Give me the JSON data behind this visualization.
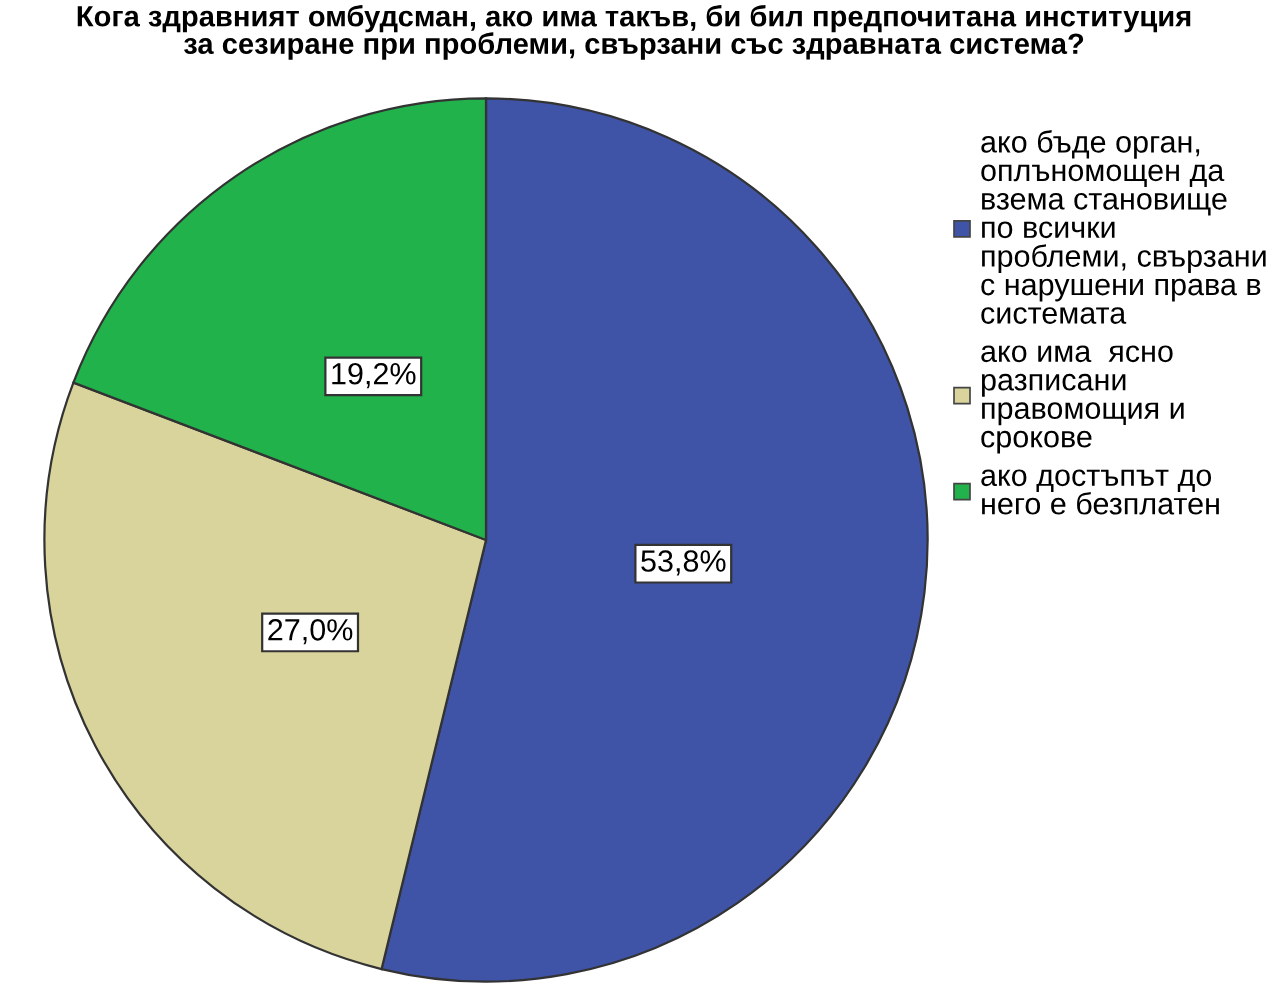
{
  "chart_data": {
    "type": "pie",
    "title": "Кога здравният омбудсман, ако има такъв, би бил предпочитана институция\nза сезиране при проблеми, свързани със здравната система?",
    "categories": [
      "ако бъде орган, оплъномощен да взема становище по всички проблеми, свързани с нарушени права в системата",
      "ако има  ясно разписани правомощия и срокове",
      "ако достъпът до него е безплатен"
    ],
    "values": [
      53.8,
      27.0,
      19.2
    ],
    "value_labels": [
      "53,8%",
      "27,0%",
      "19,2%"
    ],
    "colors": [
      "#3f54a7",
      "#d9d49c",
      "#22b24c"
    ],
    "legend": "right"
  }
}
